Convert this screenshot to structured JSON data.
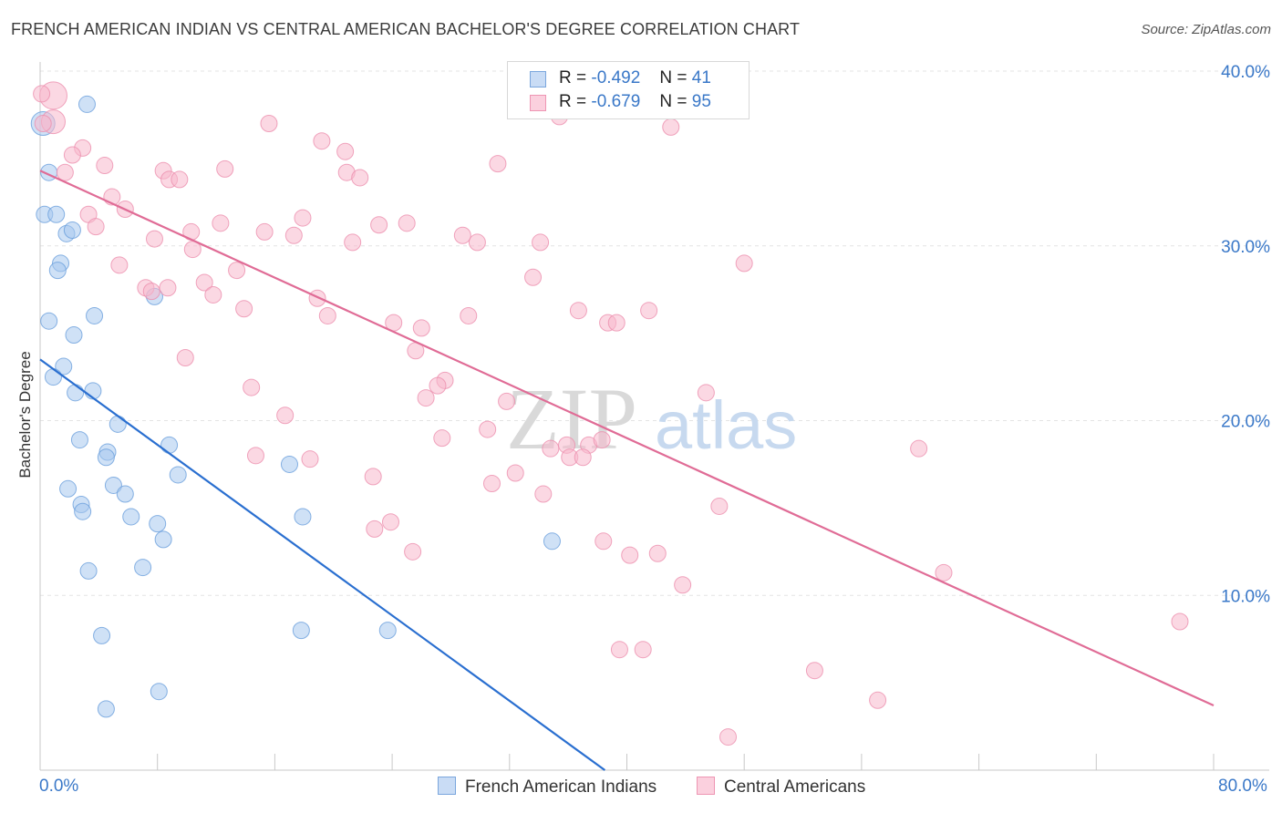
{
  "title": "FRENCH AMERICAN INDIAN VS CENTRAL AMERICAN BACHELOR'S DEGREE CORRELATION CHART",
  "source": "Source: ZipAtlas.com",
  "watermark": {
    "zip": "ZIP",
    "atlas": "atlas"
  },
  "legend_top": [
    {
      "r_label": "R =",
      "r_value": "-0.492",
      "n_label": "N =",
      "n_value": "41",
      "color": "#a8c8ee"
    },
    {
      "r_label": "R =",
      "r_value": "-0.679",
      "n_label": "N =",
      "n_value": "95",
      "color": "#f7b8cc"
    }
  ],
  "legend_bottom": [
    {
      "label": "French American Indians",
      "color": "#a8c8ee"
    },
    {
      "label": "Central Americans",
      "color": "#f7b8cc"
    }
  ],
  "chart_data": {
    "type": "scatter",
    "title": "FRENCH AMERICAN INDIAN VS CENTRAL AMERICAN BACHELOR'S DEGREE CORRELATION CHART",
    "xlabel": "",
    "ylabel": "Bachelor's Degree",
    "xlim": [
      0,
      80
    ],
    "ylim": [
      0,
      40
    ],
    "x_tick_labels": [
      "0.0%",
      "80.0%"
    ],
    "y_tick_labels": [
      "10.0%",
      "20.0%",
      "30.0%",
      "40.0%"
    ],
    "y_ticks": [
      10,
      20,
      30,
      40
    ],
    "grid": true,
    "legend_position": "top-center",
    "series": [
      {
        "name": "French American Indians",
        "color": "#a8c8ee",
        "stroke": "#6a9fdc",
        "line_color": "#2a6fd0",
        "trend": {
          "x": [
            0,
            38.5
          ],
          "y": [
            23.5,
            0
          ]
        },
        "points": [
          [
            0.2,
            37.0
          ],
          [
            3.2,
            38.1
          ],
          [
            0.6,
            34.2
          ],
          [
            0.3,
            31.8
          ],
          [
            1.1,
            31.8
          ],
          [
            1.8,
            30.7
          ],
          [
            2.2,
            30.9
          ],
          [
            1.4,
            29.0
          ],
          [
            1.2,
            28.6
          ],
          [
            7.8,
            27.1
          ],
          [
            0.6,
            25.7
          ],
          [
            3.7,
            26.0
          ],
          [
            2.3,
            24.9
          ],
          [
            1.6,
            23.1
          ],
          [
            0.9,
            22.5
          ],
          [
            2.4,
            21.6
          ],
          [
            3.6,
            21.7
          ],
          [
            5.3,
            19.8
          ],
          [
            2.7,
            18.9
          ],
          [
            4.6,
            18.2
          ],
          [
            8.8,
            18.6
          ],
          [
            4.5,
            17.9
          ],
          [
            17.0,
            17.5
          ],
          [
            9.4,
            16.9
          ],
          [
            5.0,
            16.3
          ],
          [
            1.9,
            16.1
          ],
          [
            5.8,
            15.8
          ],
          [
            2.8,
            15.2
          ],
          [
            2.9,
            14.8
          ],
          [
            6.2,
            14.5
          ],
          [
            17.9,
            14.5
          ],
          [
            8.0,
            14.1
          ],
          [
            8.4,
            13.2
          ],
          [
            34.9,
            13.1
          ],
          [
            3.3,
            11.4
          ],
          [
            7.0,
            11.6
          ],
          [
            4.2,
            7.7
          ],
          [
            17.8,
            8.0
          ],
          [
            23.7,
            8.0
          ],
          [
            8.1,
            4.5
          ],
          [
            4.5,
            3.5
          ]
        ]
      },
      {
        "name": "Central Americans",
        "color": "#f7b8cc",
        "stroke": "#ec8fae",
        "line_color": "#e06c96",
        "trend": {
          "x": [
            0,
            80
          ],
          "y": [
            34.3,
            3.7
          ]
        },
        "points": [
          [
            0.9,
            38.6
          ],
          [
            0.9,
            37.1
          ],
          [
            15.6,
            37.0
          ],
          [
            35.4,
            37.4
          ],
          [
            43.0,
            36.8
          ],
          [
            19.2,
            36.0
          ],
          [
            2.9,
            35.6
          ],
          [
            20.8,
            35.4
          ],
          [
            2.2,
            35.2
          ],
          [
            4.4,
            34.6
          ],
          [
            31.2,
            34.7
          ],
          [
            12.6,
            34.4
          ],
          [
            8.4,
            34.3
          ],
          [
            20.9,
            34.2
          ],
          [
            1.7,
            34.2
          ],
          [
            8.8,
            33.8
          ],
          [
            9.5,
            33.8
          ],
          [
            21.8,
            33.9
          ],
          [
            4.9,
            32.8
          ],
          [
            5.8,
            32.1
          ],
          [
            3.3,
            31.8
          ],
          [
            17.9,
            31.6
          ],
          [
            12.3,
            31.3
          ],
          [
            23.1,
            31.2
          ],
          [
            25.0,
            31.3
          ],
          [
            3.8,
            31.1
          ],
          [
            10.3,
            30.8
          ],
          [
            15.3,
            30.8
          ],
          [
            17.3,
            30.6
          ],
          [
            28.8,
            30.6
          ],
          [
            7.8,
            30.4
          ],
          [
            21.3,
            30.2
          ],
          [
            29.8,
            30.2
          ],
          [
            34.1,
            30.2
          ],
          [
            10.4,
            29.8
          ],
          [
            5.4,
            28.9
          ],
          [
            48.0,
            29.0
          ],
          [
            13.4,
            28.6
          ],
          [
            33.6,
            28.2
          ],
          [
            11.2,
            27.9
          ],
          [
            7.2,
            27.6
          ],
          [
            7.6,
            27.4
          ],
          [
            8.7,
            27.6
          ],
          [
            11.8,
            27.2
          ],
          [
            18.9,
            27.0
          ],
          [
            13.9,
            26.4
          ],
          [
            19.6,
            26.0
          ],
          [
            36.7,
            26.3
          ],
          [
            41.5,
            26.3
          ],
          [
            29.2,
            26.0
          ],
          [
            24.1,
            25.6
          ],
          [
            38.7,
            25.6
          ],
          [
            39.3,
            25.6
          ],
          [
            26.0,
            25.3
          ],
          [
            25.6,
            24.0
          ],
          [
            9.9,
            23.6
          ],
          [
            27.6,
            22.3
          ],
          [
            14.4,
            21.9
          ],
          [
            27.1,
            22.0
          ],
          [
            26.3,
            21.3
          ],
          [
            45.4,
            21.6
          ],
          [
            31.8,
            21.1
          ],
          [
            16.7,
            20.3
          ],
          [
            30.5,
            19.5
          ],
          [
            27.4,
            19.0
          ],
          [
            35.9,
            18.6
          ],
          [
            34.8,
            18.4
          ],
          [
            37.4,
            18.6
          ],
          [
            38.3,
            18.9
          ],
          [
            36.1,
            17.9
          ],
          [
            37.0,
            17.9
          ],
          [
            59.9,
            18.4
          ],
          [
            14.7,
            18.0
          ],
          [
            18.4,
            17.8
          ],
          [
            22.7,
            16.8
          ],
          [
            32.4,
            17.0
          ],
          [
            30.8,
            16.4
          ],
          [
            34.3,
            15.8
          ],
          [
            46.3,
            15.1
          ],
          [
            23.9,
            14.2
          ],
          [
            22.8,
            13.8
          ],
          [
            38.4,
            13.1
          ],
          [
            25.4,
            12.5
          ],
          [
            40.2,
            12.3
          ],
          [
            42.1,
            12.4
          ],
          [
            61.6,
            11.3
          ],
          [
            43.8,
            10.6
          ],
          [
            77.7,
            8.5
          ],
          [
            39.5,
            6.9
          ],
          [
            41.1,
            6.9
          ],
          [
            52.8,
            5.7
          ],
          [
            57.1,
            4.0
          ],
          [
            46.9,
            1.9
          ],
          [
            0.1,
            38.7
          ],
          [
            0.2,
            37.0
          ]
        ]
      }
    ]
  }
}
